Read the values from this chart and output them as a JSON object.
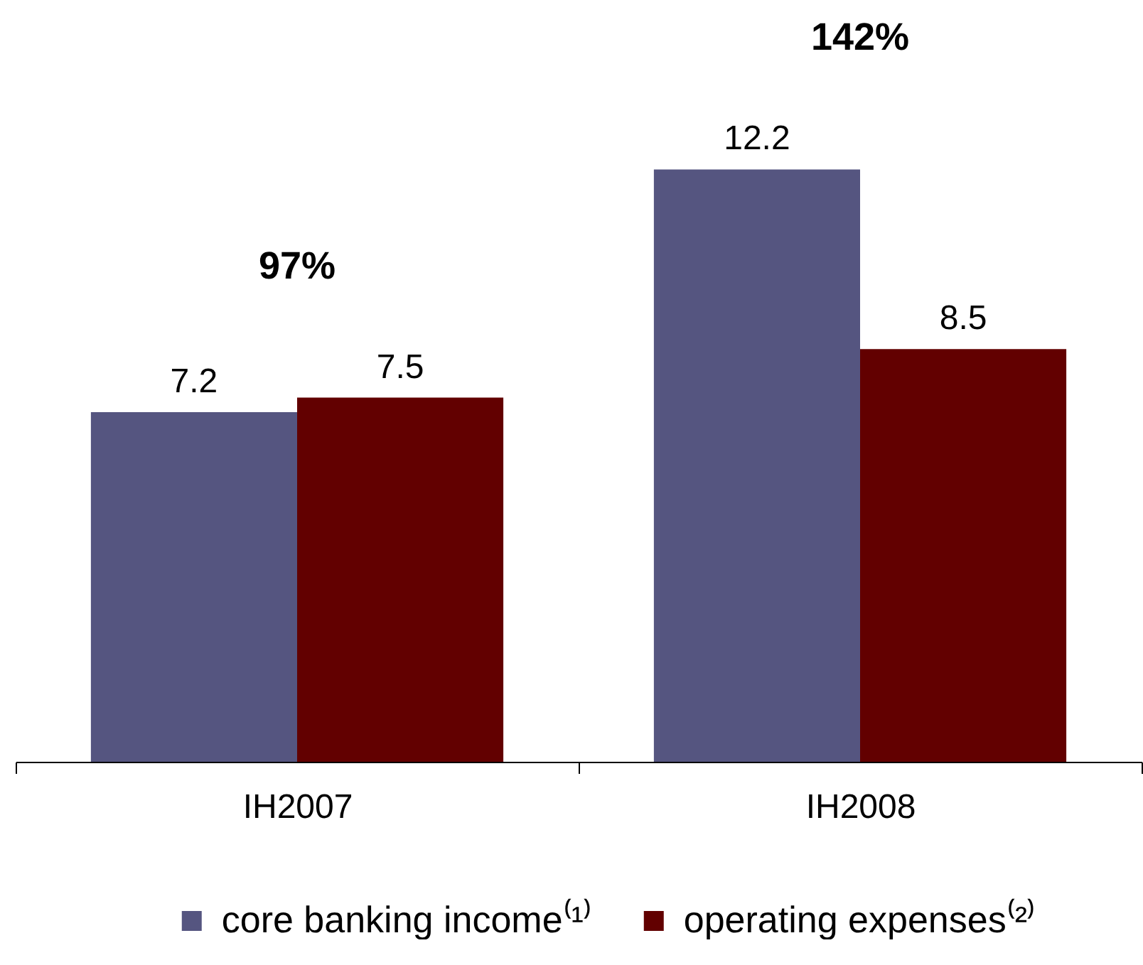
{
  "chart_data": {
    "type": "bar",
    "categories": [
      "IH2007",
      "IH2008"
    ],
    "series": [
      {
        "name": "core banking income⁽¹⁾",
        "color": "#555580",
        "values": [
          7.2,
          12.2
        ]
      },
      {
        "name": "operating expenses⁽²⁾",
        "color": "#620000",
        "values": [
          7.5,
          8.5
        ]
      }
    ],
    "tick_labels": "x",
    "data_labels": true,
    "legend": "bottom",
    "annotations": [
      "97%",
      "142%"
    ]
  }
}
